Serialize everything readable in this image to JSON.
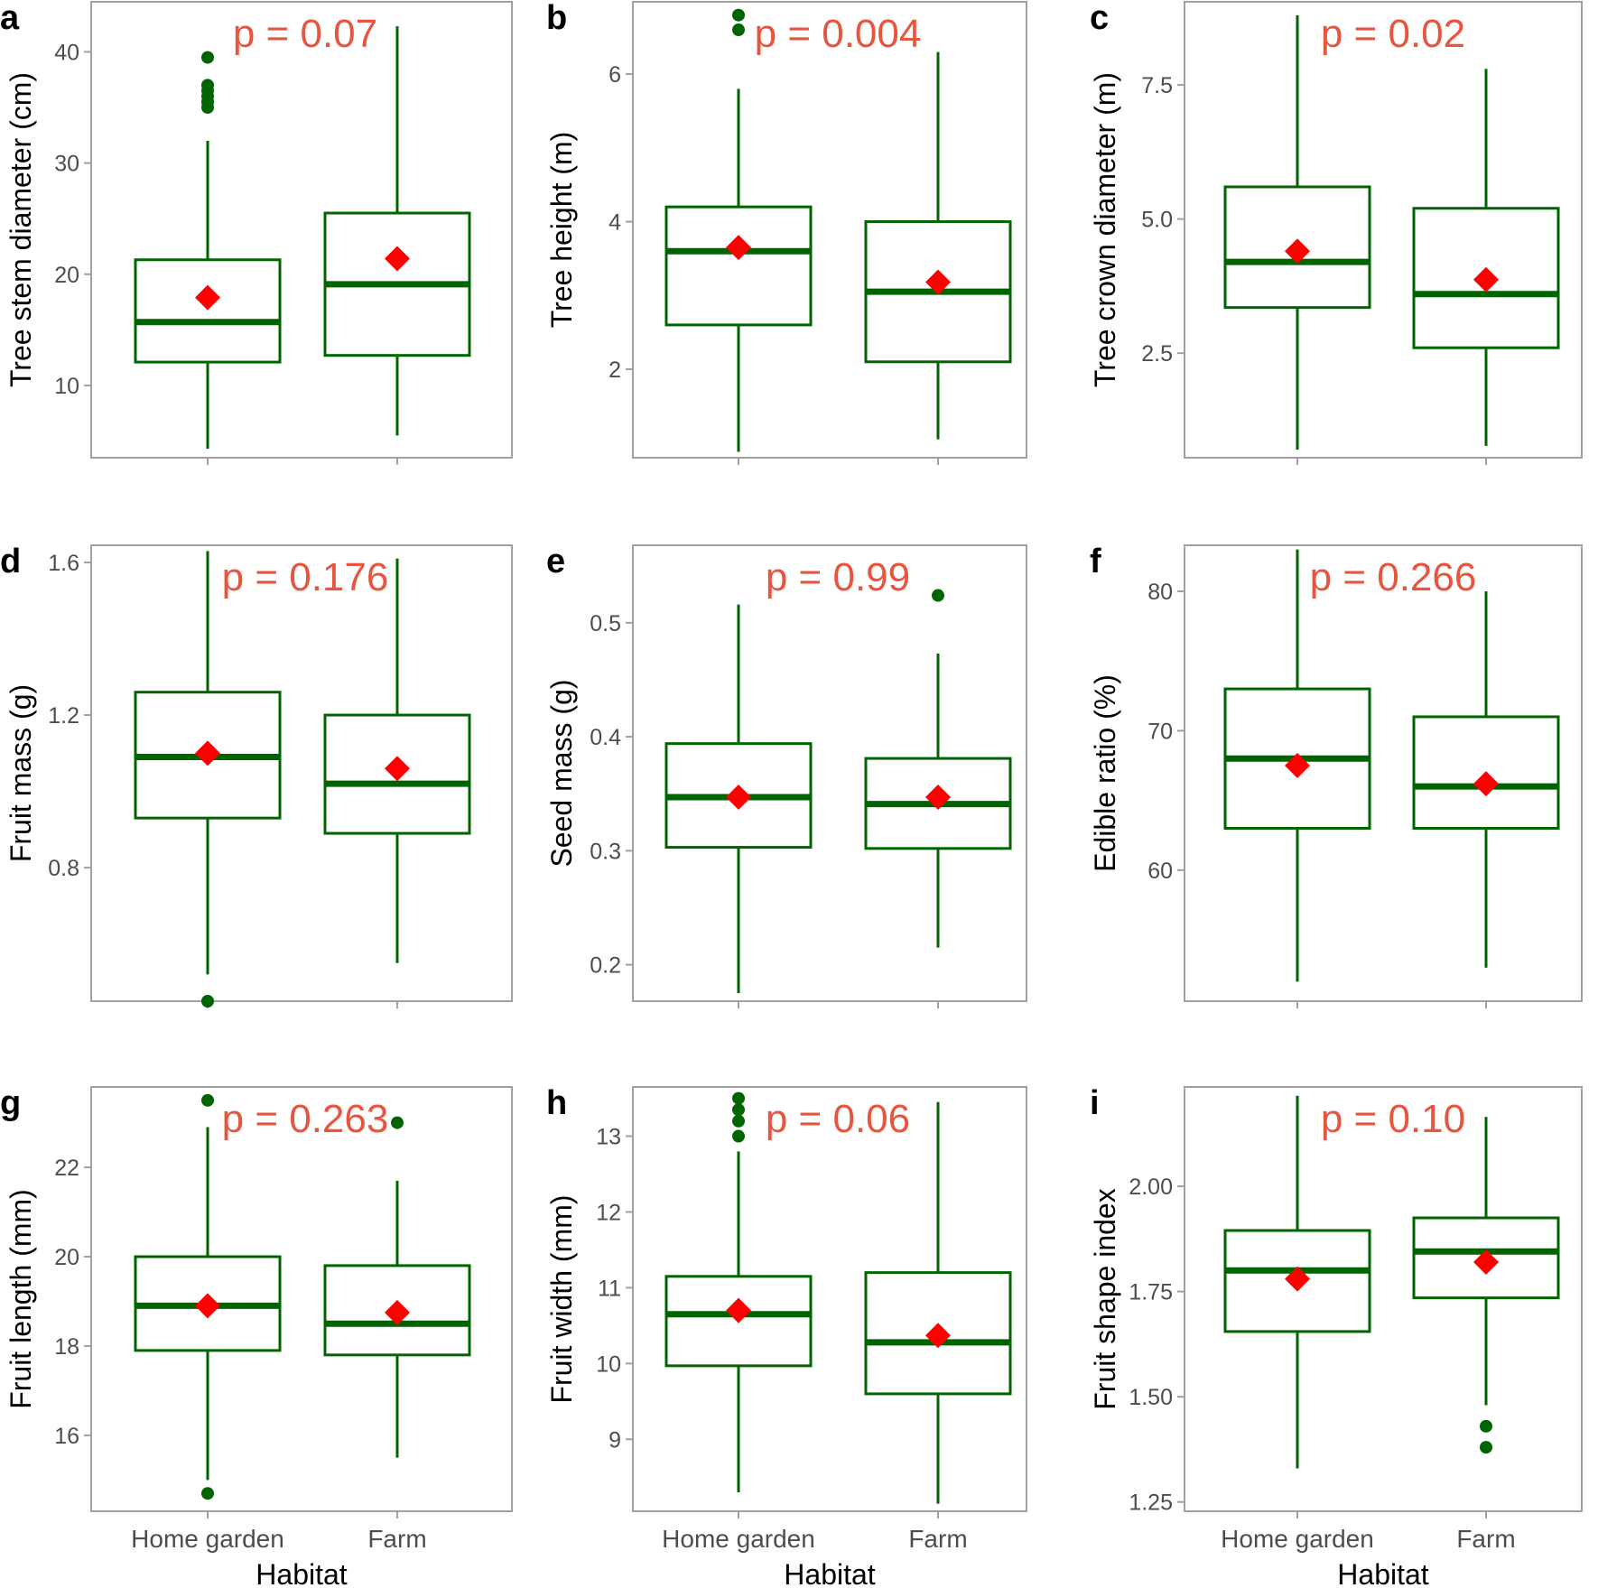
{
  "figure": {
    "x_categories": [
      "Home garden",
      "Farm"
    ],
    "x_title": "Habitat"
  },
  "colors": {
    "box": "#006400",
    "mean": "#ff0000",
    "pvalue": "#e8553e"
  },
  "chart_data": [
    {
      "type": "box",
      "letter": "a",
      "ylabel": "Tree stem diameter (cm)",
      "p_text": "p = 0.07",
      "ylim": [
        3.5,
        44.5
      ],
      "yticks": [
        10,
        20,
        30,
        40
      ],
      "tick_labels": [
        "10",
        "20",
        "30",
        "40"
      ],
      "groups": [
        {
          "category": "Home garden",
          "min": 4.3,
          "q1": 12.1,
          "median": 15.7,
          "q3": 21.3,
          "max": 32.0,
          "mean": 17.9,
          "outliers": [
            35.0,
            35.5,
            36.0,
            36.5,
            37.0,
            39.5
          ]
        },
        {
          "category": "Farm",
          "min": 5.5,
          "q1": 12.7,
          "median": 19.1,
          "q3": 25.5,
          "max": 42.3,
          "mean": 21.4,
          "outliers": []
        }
      ]
    },
    {
      "type": "box",
      "letter": "b",
      "ylabel": "Tree height (m)",
      "p_text": "p = 0.004",
      "ylim": [
        0.8,
        6.98
      ],
      "yticks": [
        2,
        4,
        6
      ],
      "tick_labels": [
        "2",
        "4",
        "6"
      ],
      "groups": [
        {
          "category": "Home garden",
          "min": 0.88,
          "q1": 2.6,
          "median": 3.6,
          "q3": 4.2,
          "max": 5.8,
          "mean": 3.65,
          "outliers": [
            6.6,
            6.8
          ]
        },
        {
          "category": "Farm",
          "min": 1.05,
          "q1": 2.1,
          "median": 3.05,
          "q3": 4.0,
          "max": 6.3,
          "mean": 3.18,
          "outliers": []
        }
      ]
    },
    {
      "type": "box",
      "letter": "c",
      "ylabel": "Tree crown diameter (m)",
      "p_text": "p = 0.02",
      "ylim": [
        0.55,
        9.05
      ],
      "yticks": [
        2.5,
        5.0,
        7.5
      ],
      "tick_labels": [
        "2.5",
        "5.0",
        "7.5"
      ],
      "groups": [
        {
          "category": "Home garden",
          "min": 0.7,
          "q1": 3.35,
          "median": 4.2,
          "q3": 5.6,
          "max": 8.8,
          "mean": 4.4,
          "outliers": []
        },
        {
          "category": "Farm",
          "min": 0.77,
          "q1": 2.6,
          "median": 3.6,
          "q3": 5.2,
          "max": 7.8,
          "mean": 3.87,
          "outliers": []
        }
      ]
    },
    {
      "type": "box",
      "letter": "d",
      "ylabel": "Fruit mass (g)",
      "p_text": "p = 0.176",
      "ylim": [
        0.45,
        1.645
      ],
      "yticks": [
        0.8,
        1.2,
        1.6
      ],
      "tick_labels": [
        "0.8",
        "1.2",
        "1.6"
      ],
      "groups": [
        {
          "category": "Home garden",
          "min": 0.52,
          "q1": 0.93,
          "median": 1.09,
          "q3": 1.26,
          "max": 1.63,
          "mean": 1.1,
          "outliers": [
            0.45
          ]
        },
        {
          "category": "Farm",
          "min": 0.55,
          "q1": 0.89,
          "median": 1.02,
          "q3": 1.2,
          "max": 1.61,
          "mean": 1.06,
          "outliers": []
        }
      ]
    },
    {
      "type": "box",
      "letter": "e",
      "ylabel": "Seed mass (g)",
      "p_text": "p = 0.99",
      "ylim": [
        0.168,
        0.568
      ],
      "yticks": [
        0.2,
        0.3,
        0.4,
        0.5
      ],
      "tick_labels": [
        "0.2",
        "0.3",
        "0.4",
        "0.5"
      ],
      "groups": [
        {
          "category": "Home garden",
          "min": 0.175,
          "q1": 0.303,
          "median": 0.347,
          "q3": 0.394,
          "max": 0.516,
          "mean": 0.347,
          "outliers": []
        },
        {
          "category": "Farm",
          "min": 0.215,
          "q1": 0.302,
          "median": 0.341,
          "q3": 0.381,
          "max": 0.473,
          "mean": 0.347,
          "outliers": [
            0.524
          ]
        }
      ]
    },
    {
      "type": "box",
      "letter": "f",
      "ylabel": "Edible ratio (%)",
      "p_text": "p = 0.266",
      "ylim": [
        50.6,
        83.3
      ],
      "yticks": [
        60,
        70,
        80
      ],
      "tick_labels": [
        "60",
        "70",
        "80"
      ],
      "groups": [
        {
          "category": "Home garden",
          "min": 52.0,
          "q1": 63.0,
          "median": 68.0,
          "q3": 73.0,
          "max": 83.0,
          "mean": 67.5,
          "outliers": []
        },
        {
          "category": "Farm",
          "min": 53.0,
          "q1": 63.0,
          "median": 66.0,
          "q3": 71.0,
          "max": 80.0,
          "mean": 66.2,
          "outliers": []
        }
      ]
    },
    {
      "type": "box",
      "letter": "g",
      "ylabel": "Fruit length (mm)",
      "p_text": "p = 0.263",
      "ylim": [
        14.3,
        23.8
      ],
      "yticks": [
        16,
        18,
        20,
        22
      ],
      "tick_labels": [
        "16",
        "18",
        "20",
        "22"
      ],
      "groups": [
        {
          "category": "Home garden",
          "min": 15.0,
          "q1": 17.9,
          "median": 18.9,
          "q3": 20.0,
          "max": 22.9,
          "mean": 18.9,
          "outliers": [
            14.7,
            23.5
          ]
        },
        {
          "category": "Farm",
          "min": 15.5,
          "q1": 17.8,
          "median": 18.5,
          "q3": 19.8,
          "max": 21.7,
          "mean": 18.75,
          "outliers": [
            23.0
          ]
        }
      ]
    },
    {
      "type": "box",
      "letter": "h",
      "ylabel": "Fruit width (mm)",
      "p_text": "p = 0.06",
      "ylim": [
        8.05,
        13.65
      ],
      "yticks": [
        9,
        10,
        11,
        12,
        13
      ],
      "tick_labels": [
        "9",
        "10",
        "11",
        "12",
        "13"
      ],
      "groups": [
        {
          "category": "Home garden",
          "min": 8.3,
          "q1": 9.97,
          "median": 10.65,
          "q3": 11.15,
          "max": 12.8,
          "mean": 10.7,
          "outliers": [
            13.0,
            13.2,
            13.35,
            13.5
          ]
        },
        {
          "category": "Farm",
          "min": 8.15,
          "q1": 9.6,
          "median": 10.28,
          "q3": 11.2,
          "max": 13.45,
          "mean": 10.37,
          "outliers": []
        }
      ]
    },
    {
      "type": "box",
      "letter": "i",
      "ylabel": "Fruit shape index",
      "p_text": "p = 0.10",
      "ylim": [
        1.228,
        2.236
      ],
      "yticks": [
        1.25,
        1.5,
        1.75,
        2.0
      ],
      "tick_labels": [
        "1.25",
        "1.50",
        "1.75",
        "2.00"
      ],
      "groups": [
        {
          "category": "Home garden",
          "min": 1.33,
          "q1": 1.655,
          "median": 1.8,
          "q3": 1.895,
          "max": 2.215,
          "mean": 1.78,
          "outliers": []
        },
        {
          "category": "Farm",
          "min": 1.48,
          "q1": 1.735,
          "median": 1.845,
          "q3": 1.925,
          "max": 2.165,
          "mean": 1.82,
          "outliers": [
            1.38,
            1.43
          ]
        }
      ]
    }
  ]
}
